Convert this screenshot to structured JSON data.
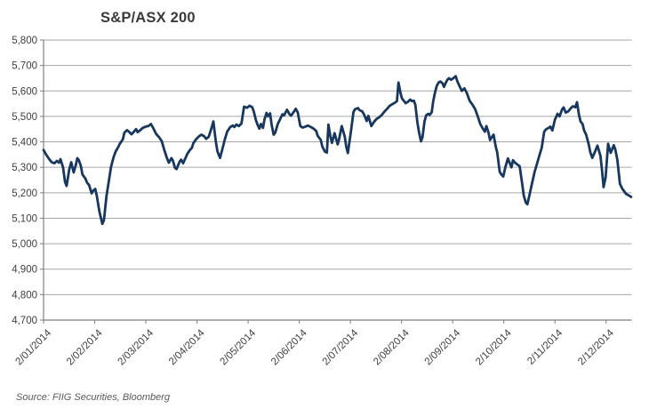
{
  "title": "S&P/ASX 200",
  "source_note": "Source: FIIG Securities, Bloomberg",
  "colors": {
    "line": "#17375E",
    "grid": "#A6A6A6",
    "axis": "#7F7F7F",
    "title_text": "#3A3A3A",
    "tick_text": "#404040",
    "source_text": "#595959",
    "background": "#FFFFFF"
  },
  "chart_data": {
    "type": "line",
    "title": "S&P/ASX 200",
    "xlabel": "",
    "ylabel": "",
    "ylim": [
      4700,
      5800
    ],
    "x_span_months": 11.5,
    "grid": "horizontal",
    "legend": "none",
    "y_ticks": [
      [
        5800,
        "5,800"
      ],
      [
        5700,
        "5,700"
      ],
      [
        5600,
        "5,600"
      ],
      [
        5500,
        "5,500"
      ],
      [
        5400,
        "5,400"
      ],
      [
        5300,
        "5,300"
      ],
      [
        5200,
        "5,200"
      ],
      [
        5100,
        "5,100"
      ],
      [
        5000,
        "5,000"
      ],
      [
        4900,
        "4,900"
      ],
      [
        4800,
        "4,800"
      ],
      [
        4700,
        "4,700"
      ]
    ],
    "x_tick_labels": [
      "2/01/2014",
      "2/02/2014",
      "2/03/2014",
      "2/04/2014",
      "2/05/2014",
      "2/06/2014",
      "2/07/2014",
      "2/08/2014",
      "2/09/2014",
      "2/10/2014",
      "2/11/2014",
      "2/12/2014"
    ],
    "series": [
      {
        "name": "S&P/ASX 200",
        "points": [
          [
            0,
            5368
          ],
          [
            0.05,
            5350
          ],
          [
            0.1,
            5335
          ],
          [
            0.16,
            5320
          ],
          [
            0.21,
            5316
          ],
          [
            0.26,
            5325
          ],
          [
            0.3,
            5318
          ],
          [
            0.33,
            5332
          ],
          [
            0.38,
            5300
          ],
          [
            0.42,
            5242
          ],
          [
            0.45,
            5227
          ],
          [
            0.5,
            5290
          ],
          [
            0.54,
            5320
          ],
          [
            0.59,
            5280
          ],
          [
            0.63,
            5308
          ],
          [
            0.66,
            5336
          ],
          [
            0.69,
            5328
          ],
          [
            0.73,
            5305
          ],
          [
            0.76,
            5272
          ],
          [
            0.82,
            5255
          ],
          [
            0.85,
            5240
          ],
          [
            0.89,
            5230
          ],
          [
            0.94,
            5198
          ],
          [
            0.97,
            5208
          ],
          [
            1.01,
            5215
          ],
          [
            1.04,
            5190
          ],
          [
            1.09,
            5128
          ],
          [
            1.15,
            5078
          ],
          [
            1.18,
            5092
          ],
          [
            1.23,
            5188
          ],
          [
            1.28,
            5250
          ],
          [
            1.32,
            5302
          ],
          [
            1.37,
            5340
          ],
          [
            1.41,
            5362
          ],
          [
            1.46,
            5380
          ],
          [
            1.49,
            5392
          ],
          [
            1.55,
            5410
          ],
          [
            1.58,
            5436
          ],
          [
            1.63,
            5446
          ],
          [
            1.67,
            5440
          ],
          [
            1.72,
            5430
          ],
          [
            1.75,
            5436
          ],
          [
            1.81,
            5450
          ],
          [
            1.84,
            5438
          ],
          [
            1.89,
            5446
          ],
          [
            1.94,
            5455
          ],
          [
            2,
            5460
          ],
          [
            2.05,
            5462
          ],
          [
            2.1,
            5470
          ],
          [
            2.15,
            5452
          ],
          [
            2.2,
            5432
          ],
          [
            2.26,
            5418
          ],
          [
            2.31,
            5403
          ],
          [
            2.36,
            5368
          ],
          [
            2.41,
            5338
          ],
          [
            2.45,
            5318
          ],
          [
            2.5,
            5336
          ],
          [
            2.53,
            5326
          ],
          [
            2.57,
            5298
          ],
          [
            2.6,
            5293
          ],
          [
            2.66,
            5322
          ],
          [
            2.69,
            5330
          ],
          [
            2.73,
            5316
          ],
          [
            2.76,
            5330
          ],
          [
            2.81,
            5352
          ],
          [
            2.86,
            5368
          ],
          [
            2.9,
            5376
          ],
          [
            2.93,
            5395
          ],
          [
            2.99,
            5412
          ],
          [
            3.04,
            5422
          ],
          [
            3.09,
            5428
          ],
          [
            3.14,
            5422
          ],
          [
            3.18,
            5412
          ],
          [
            3.23,
            5420
          ],
          [
            3.28,
            5452
          ],
          [
            3.32,
            5480
          ],
          [
            3.37,
            5400
          ],
          [
            3.4,
            5362
          ],
          [
            3.45,
            5337
          ],
          [
            3.51,
            5382
          ],
          [
            3.54,
            5406
          ],
          [
            3.59,
            5440
          ],
          [
            3.65,
            5458
          ],
          [
            3.7,
            5464
          ],
          [
            3.73,
            5458
          ],
          [
            3.77,
            5468
          ],
          [
            3.82,
            5462
          ],
          [
            3.87,
            5472
          ],
          [
            3.92,
            5538
          ],
          [
            3.98,
            5534
          ],
          [
            4.03,
            5542
          ],
          [
            4.08,
            5536
          ],
          [
            4.11,
            5520
          ],
          [
            4.15,
            5487
          ],
          [
            4.18,
            5470
          ],
          [
            4.22,
            5452
          ],
          [
            4.25,
            5470
          ],
          [
            4.29,
            5455
          ],
          [
            4.32,
            5488
          ],
          [
            4.36,
            5514
          ],
          [
            4.39,
            5500
          ],
          [
            4.43,
            5512
          ],
          [
            4.46,
            5468
          ],
          [
            4.5,
            5428
          ],
          [
            4.53,
            5436
          ],
          [
            4.58,
            5470
          ],
          [
            4.62,
            5487
          ],
          [
            4.67,
            5508
          ],
          [
            4.7,
            5504
          ],
          [
            4.76,
            5526
          ],
          [
            4.81,
            5508
          ],
          [
            4.84,
            5503
          ],
          [
            4.9,
            5520
          ],
          [
            4.93,
            5530
          ],
          [
            4.97,
            5516
          ],
          [
            5.02,
            5462
          ],
          [
            5.07,
            5456
          ],
          [
            5.12,
            5460
          ],
          [
            5.17,
            5464
          ],
          [
            5.23,
            5458
          ],
          [
            5.28,
            5452
          ],
          [
            5.33,
            5443
          ],
          [
            5.36,
            5424
          ],
          [
            5.42,
            5408
          ],
          [
            5.45,
            5382
          ],
          [
            5.5,
            5362
          ],
          [
            5.54,
            5358
          ],
          [
            5.57,
            5468
          ],
          [
            5.61,
            5420
          ],
          [
            5.64,
            5396
          ],
          [
            5.69,
            5434
          ],
          [
            5.75,
            5390
          ],
          [
            5.78,
            5412
          ],
          [
            5.83,
            5462
          ],
          [
            5.89,
            5420
          ],
          [
            5.92,
            5380
          ],
          [
            5.95,
            5356
          ],
          [
            6.01,
            5440
          ],
          [
            6.06,
            5518
          ],
          [
            6.09,
            5528
          ],
          [
            6.15,
            5533
          ],
          [
            6.18,
            5524
          ],
          [
            6.23,
            5520
          ],
          [
            6.27,
            5506
          ],
          [
            6.32,
            5482
          ],
          [
            6.35,
            5502
          ],
          [
            6.41,
            5462
          ],
          [
            6.46,
            5478
          ],
          [
            6.51,
            5490
          ],
          [
            6.56,
            5496
          ],
          [
            6.61,
            5505
          ],
          [
            6.67,
            5520
          ],
          [
            6.72,
            5530
          ],
          [
            6.77,
            5542
          ],
          [
            6.82,
            5548
          ],
          [
            6.88,
            5555
          ],
          [
            6.91,
            5560
          ],
          [
            6.94,
            5633
          ],
          [
            6.98,
            5592
          ],
          [
            7.01,
            5570
          ],
          [
            7.05,
            5560
          ],
          [
            7.08,
            5552
          ],
          [
            7.13,
            5558
          ],
          [
            7.17,
            5566
          ],
          [
            7.2,
            5560
          ],
          [
            7.24,
            5562
          ],
          [
            7.27,
            5545
          ],
          [
            7.31,
            5476
          ],
          [
            7.34,
            5440
          ],
          [
            7.38,
            5402
          ],
          [
            7.41,
            5418
          ],
          [
            7.45,
            5480
          ],
          [
            7.48,
            5504
          ],
          [
            7.52,
            5510
          ],
          [
            7.55,
            5506
          ],
          [
            7.59,
            5516
          ],
          [
            7.62,
            5560
          ],
          [
            7.66,
            5598
          ],
          [
            7.69,
            5620
          ],
          [
            7.73,
            5634
          ],
          [
            7.76,
            5637
          ],
          [
            7.8,
            5630
          ],
          [
            7.83,
            5616
          ],
          [
            7.86,
            5630
          ],
          [
            7.9,
            5645
          ],
          [
            7.93,
            5650
          ],
          [
            7.97,
            5644
          ],
          [
            8,
            5648
          ],
          [
            8.06,
            5658
          ],
          [
            8.09,
            5638
          ],
          [
            8.13,
            5620
          ],
          [
            8.18,
            5600
          ],
          [
            8.23,
            5610
          ],
          [
            8.28,
            5590
          ],
          [
            8.33,
            5562
          ],
          [
            8.39,
            5545
          ],
          [
            8.44,
            5528
          ],
          [
            8.49,
            5500
          ],
          [
            8.54,
            5470
          ],
          [
            8.59,
            5452
          ],
          [
            8.63,
            5440
          ],
          [
            8.66,
            5462
          ],
          [
            8.7,
            5437
          ],
          [
            8.73,
            5407
          ],
          [
            8.77,
            5420
          ],
          [
            8.8,
            5428
          ],
          [
            8.84,
            5383
          ],
          [
            8.87,
            5360
          ],
          [
            8.92,
            5282
          ],
          [
            8.96,
            5270
          ],
          [
            8.99,
            5264
          ],
          [
            9.03,
            5300
          ],
          [
            9.08,
            5335
          ],
          [
            9.11,
            5320
          ],
          [
            9.15,
            5300
          ],
          [
            9.18,
            5328
          ],
          [
            9.22,
            5318
          ],
          [
            9.27,
            5310
          ],
          [
            9.31,
            5304
          ],
          [
            9.36,
            5235
          ],
          [
            9.39,
            5190
          ],
          [
            9.43,
            5162
          ],
          [
            9.46,
            5155
          ],
          [
            9.5,
            5190
          ],
          [
            9.55,
            5235
          ],
          [
            9.6,
            5280
          ],
          [
            9.65,
            5315
          ],
          [
            9.7,
            5350
          ],
          [
            9.74,
            5376
          ],
          [
            9.79,
            5440
          ],
          [
            9.83,
            5450
          ],
          [
            9.88,
            5455
          ],
          [
            9.91,
            5460
          ],
          [
            9.95,
            5445
          ],
          [
            10,
            5487
          ],
          [
            10.05,
            5510
          ],
          [
            10.09,
            5500
          ],
          [
            10.14,
            5528
          ],
          [
            10.17,
            5535
          ],
          [
            10.21,
            5515
          ],
          [
            10.26,
            5520
          ],
          [
            10.31,
            5532
          ],
          [
            10.35,
            5540
          ],
          [
            10.4,
            5536
          ],
          [
            10.43,
            5556
          ],
          [
            10.47,
            5505
          ],
          [
            10.5,
            5480
          ],
          [
            10.54,
            5470
          ],
          [
            10.57,
            5445
          ],
          [
            10.61,
            5428
          ],
          [
            10.66,
            5390
          ],
          [
            10.69,
            5360
          ],
          [
            10.73,
            5337
          ],
          [
            10.78,
            5360
          ],
          [
            10.83,
            5385
          ],
          [
            10.89,
            5345
          ],
          [
            10.92,
            5290
          ],
          [
            10.95,
            5222
          ],
          [
            10.99,
            5260
          ],
          [
            11.04,
            5393
          ],
          [
            11.09,
            5357
          ],
          [
            11.15,
            5387
          ],
          [
            11.18,
            5370
          ],
          [
            11.22,
            5330
          ],
          [
            11.27,
            5235
          ],
          [
            11.32,
            5215
          ],
          [
            11.39,
            5196
          ],
          [
            11.44,
            5190
          ],
          [
            11.49,
            5184
          ]
        ]
      }
    ]
  }
}
